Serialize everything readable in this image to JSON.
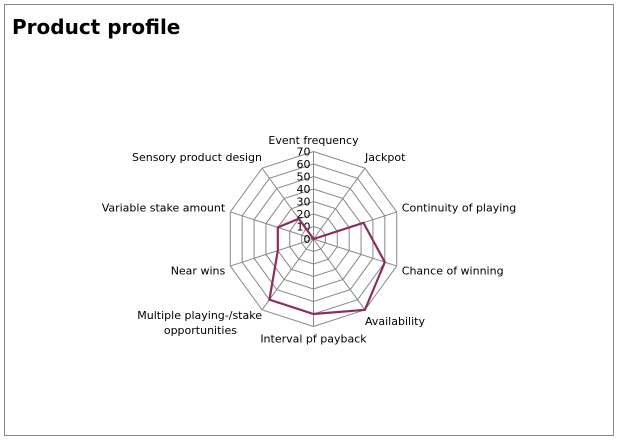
{
  "chart_data": {
    "type": "radar",
    "title": "Product profile",
    "categories": [
      "Event frequency",
      "Jackpot",
      "Continuity of playing",
      "Chance of winning",
      "Availability",
      "Interval pf payback",
      "Multiple playing-/stake opportunities",
      "Near wins",
      "Variable stake amount",
      "Sensory product design"
    ],
    "values": [
      0,
      0,
      42,
      60,
      70,
      60,
      60,
      30,
      30,
      20
    ],
    "rlim": [
      0,
      70
    ],
    "ticks": [
      "0",
      "10",
      "20",
      "30",
      "40",
      "50",
      "60",
      "70"
    ],
    "legend": false,
    "grid": true,
    "series_color": "#8B2E5E"
  }
}
